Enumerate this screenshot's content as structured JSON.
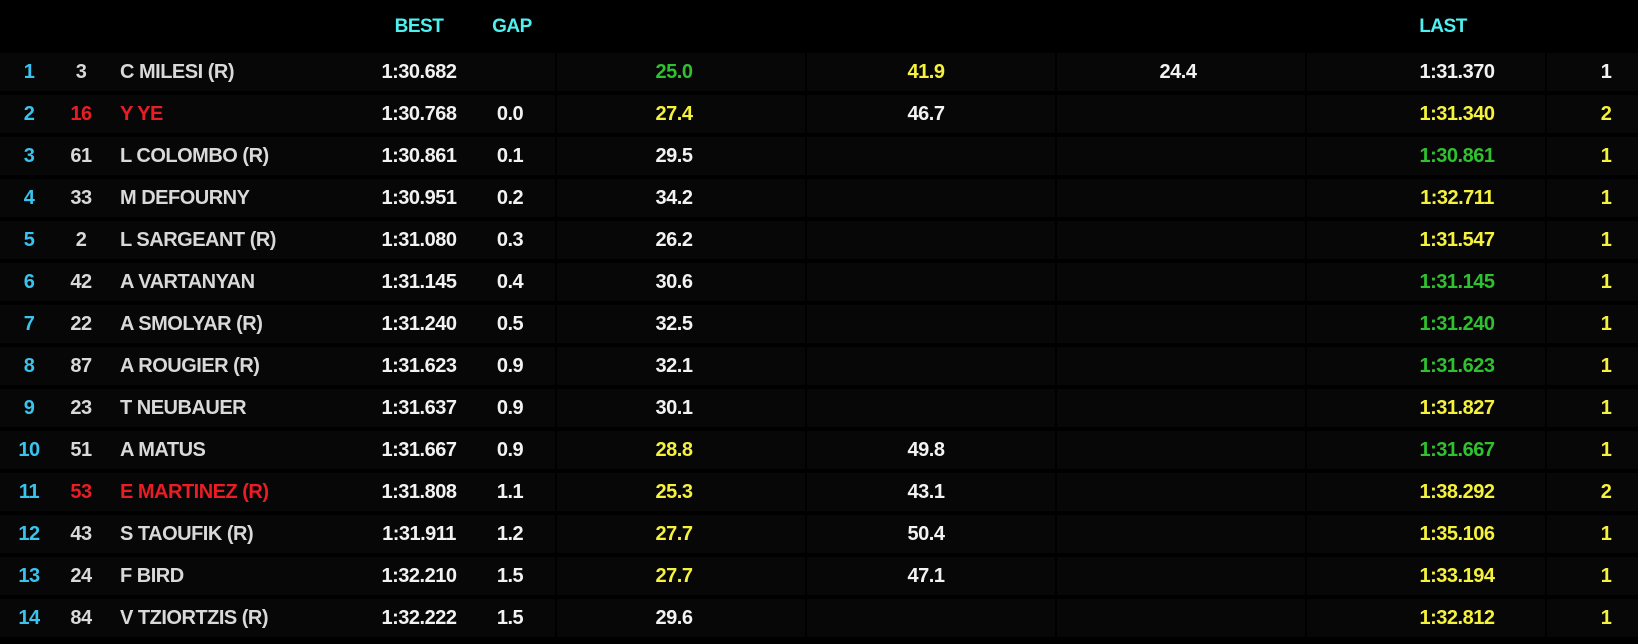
{
  "header": {
    "best": "BEST",
    "gap": "GAP",
    "last": "LAST"
  },
  "table": {
    "rows": [
      {
        "pos": "1",
        "num": "3",
        "name": "C MILESI (R)",
        "best": "1:30.682",
        "s1": "25.0",
        "s2": "41.9",
        "s3": "24.4",
        "last": "1:31.370",
        "pits": "1",
        "colors": {
          "s1": "#2fc12f",
          "s2": "#f6f23c",
          "last": "#f2f2f2",
          "pits": "#f2f2f2"
        }
      },
      {
        "pos": "2",
        "num": "16",
        "name": "Y YE",
        "best": "1:30.768",
        "gap": "0.0",
        "s1": "27.4",
        "s2": "46.7",
        "last": "1:31.340",
        "pits": "2",
        "colors": {
          "num": "#ea1c24",
          "name": "#ea1c24",
          "s1": "#f6f23c",
          "last": "#f6f23c"
        }
      },
      {
        "pos": "3",
        "num": "61",
        "name": "L COLOMBO (R)",
        "best": "1:30.861",
        "gap": "0.1",
        "s1": "29.5",
        "last": "1:30.861",
        "pits": "1",
        "colors": {
          "last": "#2fc12f"
        }
      },
      {
        "pos": "4",
        "num": "33",
        "name": "M DEFOURNY",
        "best": "1:30.951",
        "gap": "0.2",
        "s1": "34.2",
        "last": "1:32.711",
        "pits": "1",
        "colors": {
          "last": "#f6f23c"
        }
      },
      {
        "pos": "5",
        "num": "2",
        "name": "L SARGEANT (R)",
        "best": "1:31.080",
        "gap": "0.3",
        "s1": "26.2",
        "last": "1:31.547",
        "pits": "1",
        "colors": {
          "last": "#f6f23c"
        }
      },
      {
        "pos": "6",
        "num": "42",
        "name": "A VARTANYAN",
        "best": "1:31.145",
        "gap": "0.4",
        "s1": "30.6",
        "last": "1:31.145",
        "pits": "1",
        "colors": {
          "last": "#2fc12f"
        }
      },
      {
        "pos": "7",
        "num": "22",
        "name": "A SMOLYAR (R)",
        "best": "1:31.240",
        "gap": "0.5",
        "s1": "32.5",
        "last": "1:31.240",
        "pits": "1",
        "colors": {
          "last": "#2fc12f"
        }
      },
      {
        "pos": "8",
        "num": "87",
        "name": "A ROUGIER (R)",
        "best": "1:31.623",
        "gap": "0.9",
        "s1": "32.1",
        "last": "1:31.623",
        "pits": "1",
        "colors": {
          "last": "#2fc12f"
        }
      },
      {
        "pos": "9",
        "num": "23",
        "name": "T NEUBAUER",
        "best": "1:31.637",
        "gap": "0.9",
        "s1": "30.1",
        "last": "1:31.827",
        "pits": "1",
        "colors": {
          "last": "#f6f23c"
        }
      },
      {
        "pos": "10",
        "num": "51",
        "name": "A MATUS",
        "best": "1:31.667",
        "gap": "0.9",
        "s1": "28.8",
        "s2": "49.8",
        "last": "1:31.667",
        "pits": "1",
        "colors": {
          "s1": "#f6f23c",
          "last": "#2fc12f"
        }
      },
      {
        "pos": "11",
        "num": "53",
        "name": "E MARTINEZ (R)",
        "best": "1:31.808",
        "gap": "1.1",
        "s1": "25.3",
        "s2": "43.1",
        "last": "1:38.292",
        "pits": "2",
        "colors": {
          "num": "#ea1c24",
          "name": "#ea1c24",
          "s1": "#f6f23c",
          "last": "#f6f23c"
        }
      },
      {
        "pos": "12",
        "num": "43",
        "name": "S TAOUFIK (R)",
        "best": "1:31.911",
        "gap": "1.2",
        "s1": "27.7",
        "s2": "50.4",
        "last": "1:35.106",
        "pits": "1",
        "colors": {
          "s1": "#f6f23c",
          "last": "#f6f23c"
        }
      },
      {
        "pos": "13",
        "num": "24",
        "name": "F BIRD",
        "best": "1:32.210",
        "gap": "1.5",
        "s1": "27.7",
        "s2": "47.1",
        "last": "1:33.194",
        "pits": "1",
        "colors": {
          "s1": "#f6f23c",
          "last": "#f6f23c"
        }
      },
      {
        "pos": "14",
        "num": "84",
        "name": "V TZIORTZIS (R)",
        "best": "1:32.222",
        "gap": "1.5",
        "s1": "29.6",
        "last": "1:32.812",
        "pits": "1",
        "colors": {
          "last": "#f6f23c"
        }
      }
    ]
  }
}
